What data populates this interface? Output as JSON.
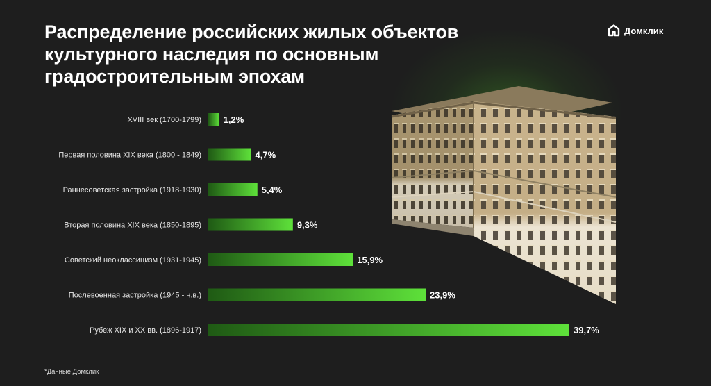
{
  "title": "Распределение российских жилых объектов культурного наследия по основным градостроительным эпохам",
  "brand": {
    "name": "Домклик",
    "icon": "domclick-logo-icon"
  },
  "footnote": "*Данные Домклик",
  "colors": {
    "background": "#1e1e1e",
    "bar_start": "#1f5a14",
    "bar_end": "#5ee13a",
    "text": "#ffffff"
  },
  "chart_data": {
    "type": "bar",
    "orientation": "horizontal",
    "categories": [
      "XVIII век (1700-1799)",
      "Первая половина XIX века (1800 - 1849)",
      "Раннесоветская застройка (1918-1930)",
      "Вторая половина XIX века (1850-1895)",
      "Советский неоклассицизм (1931-1945)",
      "Послевоенная застройка (1945 - н.в.)",
      "Рубеж XIX и XX вв. (1896-1917)"
    ],
    "values": [
      1.2,
      4.7,
      5.4,
      9.3,
      15.9,
      23.9,
      39.7
    ],
    "value_labels": [
      "1,2%",
      "4,7%",
      "5,4%",
      "9,3%",
      "15,9%",
      "23,9%",
      "39,7%"
    ],
    "unit": "%",
    "grid": false,
    "legend": "none"
  }
}
